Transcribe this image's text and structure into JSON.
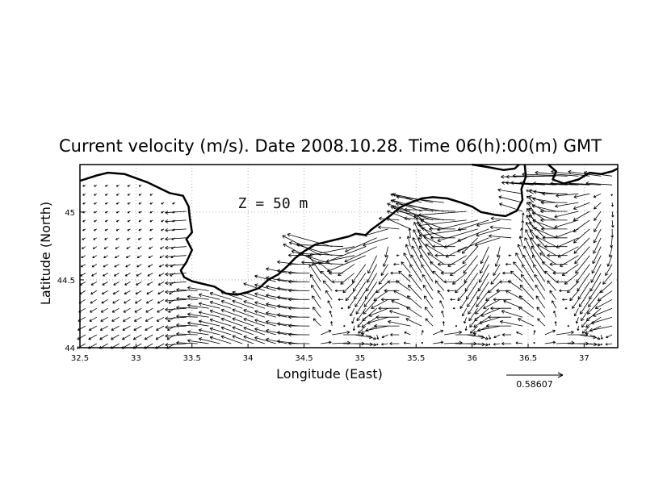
{
  "chart_data": {
    "type": "vector-field",
    "title": "Current velocity (m/s). Date 2008.10.28. Time 06(h):00(m) GMT",
    "xlabel": "Longitude (East)",
    "ylabel": "Latitude (North)",
    "xlim": [
      32.5,
      37.3
    ],
    "ylim": [
      44.0,
      45.35
    ],
    "x_ticks": [
      "32.5",
      "33",
      "33.5",
      "34",
      "34.5",
      "35",
      "35.5",
      "36",
      "36.5",
      "37"
    ],
    "y_ticks": [
      "44",
      "44.5",
      "45"
    ],
    "grid": true,
    "annotation": "Z = 50 m",
    "reference_vector": {
      "label": "0.58607",
      "value": 0.58607
    },
    "coastline": [
      [
        32.5,
        45.23
      ],
      [
        32.65,
        45.27
      ],
      [
        32.75,
        45.29
      ],
      [
        32.9,
        45.28
      ],
      [
        33.1,
        45.22
      ],
      [
        33.3,
        45.14
      ],
      [
        33.42,
        45.12
      ],
      [
        33.47,
        45.04
      ],
      [
        33.48,
        44.96
      ],
      [
        33.5,
        44.85
      ],
      [
        33.45,
        44.8
      ],
      [
        33.5,
        44.72
      ],
      [
        33.45,
        44.63
      ],
      [
        33.4,
        44.57
      ],
      [
        33.43,
        44.52
      ],
      [
        33.5,
        44.49
      ],
      [
        33.6,
        44.47
      ],
      [
        33.7,
        44.45
      ],
      [
        33.8,
        44.4
      ],
      [
        33.9,
        44.39
      ],
      [
        34.0,
        44.41
      ],
      [
        34.1,
        44.44
      ],
      [
        34.18,
        44.5
      ],
      [
        34.27,
        44.54
      ],
      [
        34.35,
        44.6
      ],
      [
        34.42,
        44.66
      ],
      [
        34.5,
        44.71
      ],
      [
        34.6,
        44.76
      ],
      [
        34.7,
        44.78
      ],
      [
        34.8,
        44.8
      ],
      [
        34.9,
        44.82
      ],
      [
        34.96,
        44.84
      ],
      [
        35.05,
        44.83
      ],
      [
        35.1,
        44.87
      ],
      [
        35.2,
        44.93
      ],
      [
        35.28,
        44.98
      ],
      [
        35.35,
        45.03
      ],
      [
        35.42,
        45.06
      ],
      [
        35.55,
        45.1
      ],
      [
        35.65,
        45.11
      ],
      [
        35.78,
        45.1
      ],
      [
        35.9,
        45.07
      ],
      [
        36.0,
        45.04
      ],
      [
        36.08,
        45.0
      ],
      [
        36.2,
        44.98
      ],
      [
        36.3,
        44.97
      ],
      [
        36.4,
        45.01
      ],
      [
        36.45,
        45.09
      ],
      [
        36.44,
        45.17
      ],
      [
        36.48,
        45.26
      ],
      [
        36.47,
        45.35
      ]
    ],
    "coastline2": [
      [
        36.0,
        45.35
      ],
      [
        36.15,
        45.33
      ],
      [
        36.28,
        45.31
      ],
      [
        36.38,
        45.32
      ],
      [
        36.42,
        45.35
      ]
    ],
    "coastline3": [
      [
        36.68,
        45.35
      ],
      [
        36.75,
        45.3
      ],
      [
        36.72,
        45.24
      ],
      [
        36.82,
        45.21
      ],
      [
        36.95,
        45.24
      ],
      [
        37.05,
        45.29
      ],
      [
        37.15,
        45.28
      ],
      [
        37.25,
        45.3
      ],
      [
        37.3,
        45.32
      ]
    ]
  }
}
